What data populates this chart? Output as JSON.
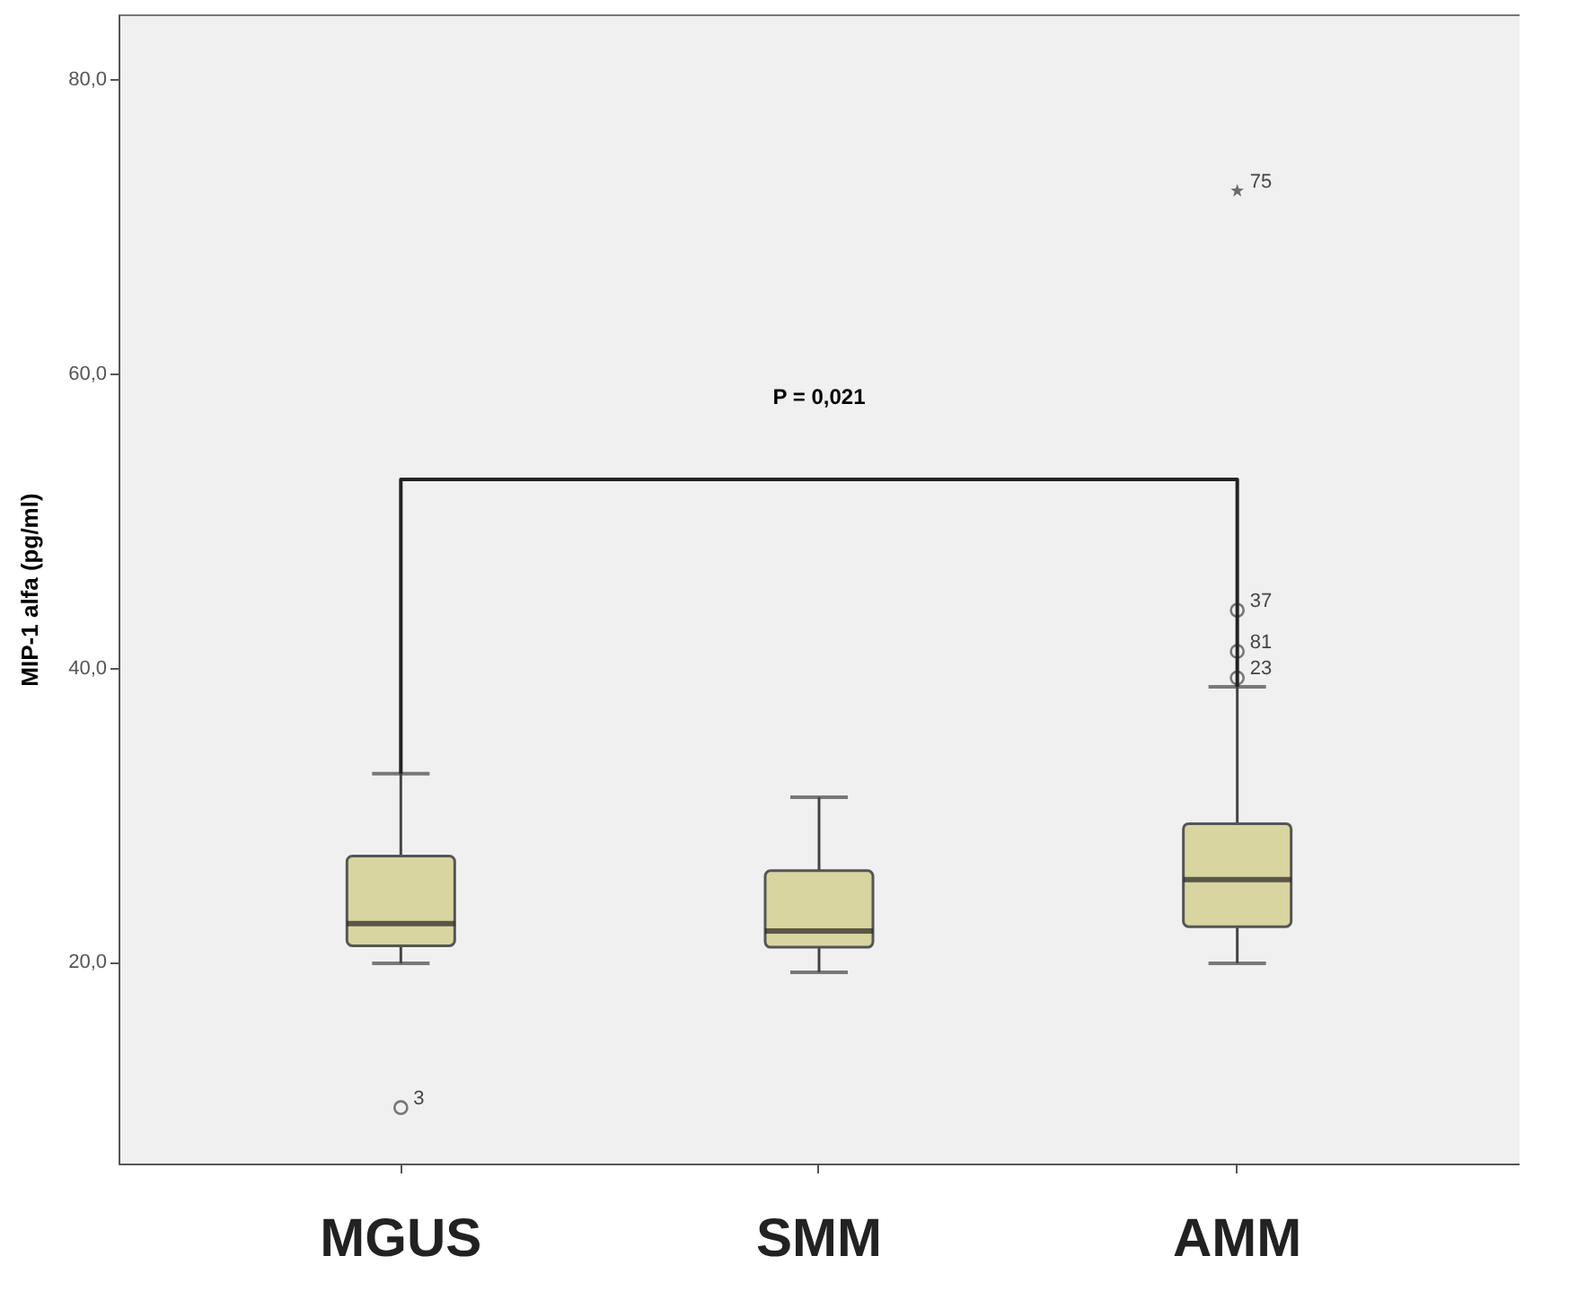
{
  "chart_data": {
    "type": "box",
    "ylabel": "MIP-1 alfa (pg/ml)",
    "categories": [
      "MGUS",
      "SMM",
      "AMM"
    ],
    "color": "#d9d5a0",
    "boxes": [
      {
        "low": 19.9,
        "q1": 21.1,
        "median": 22.6,
        "q3": 27.2,
        "high": 32.8,
        "outliers": [
          10.1
        ]
      },
      {
        "low": 19.3,
        "q1": 21.0,
        "median": 22.1,
        "q3": 26.2,
        "high": 31.2
      },
      {
        "low": 19.9,
        "q1": 22.4,
        "median": 25.6,
        "q3": 29.4,
        "high": 38.7,
        "outliers": [
          43.9,
          41.1,
          39.3
        ]
      }
    ],
    "series": [
      {
        "type": "scatter",
        "marker": "star",
        "color": "#333333",
        "x": [
          "AMM"
        ],
        "values": [
          72.4
        ]
      }
    ],
    "ylim": [
      6.3,
      84.4
    ],
    "yticks": [
      {
        "value": 20,
        "label": "20,0"
      },
      {
        "value": 40,
        "label": "40,0"
      },
      {
        "value": 60,
        "label": "60,0"
      },
      {
        "value": 80,
        "label": "80,0"
      }
    ],
    "grid": false,
    "annotations": [
      "P = 0,021",
      "3",
      {
        "text": "75",
        "x": "AMM",
        "y": 72.4
      },
      "37",
      "81",
      {
        "text": "23",
        "x": "AMM",
        "y": 39.3
      }
    ]
  }
}
